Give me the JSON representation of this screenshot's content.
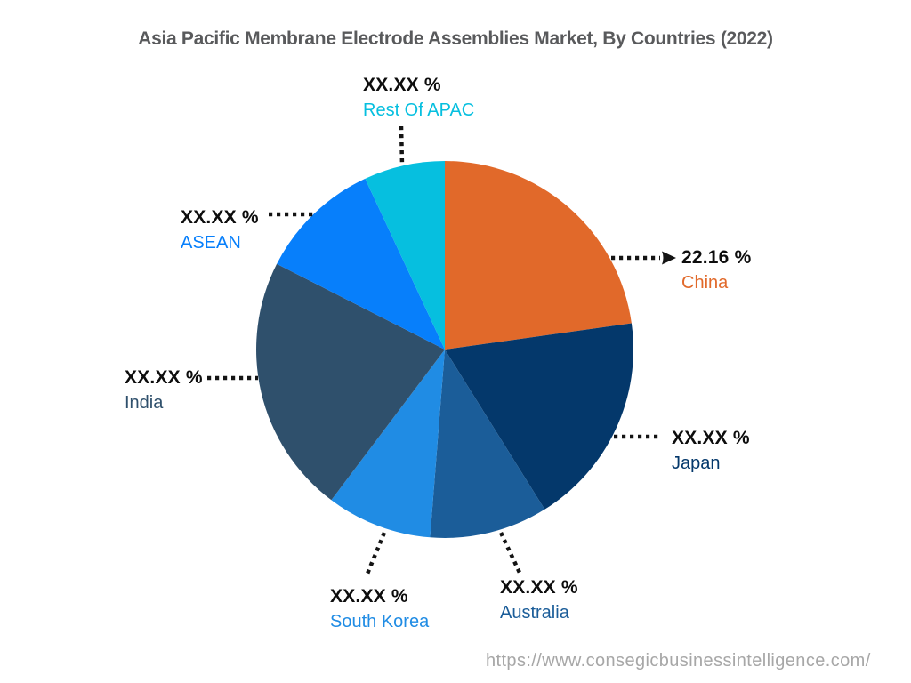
{
  "header": {
    "title": "Asia Pacific Membrane Electrode Assemblies Market, By Countries (2022)",
    "title_color": "#595a5c"
  },
  "footer": {
    "url": "https://www.consegicbusinessintelligence.com/",
    "color": "#a7a7a7"
  },
  "styles": {
    "value_text_color": "#0d0d0d",
    "leader_line_color": "#141414",
    "background": "#ffffff"
  },
  "chart_data": {
    "type": "pie",
    "title": "Asia Pacific Membrane Electrode Assemblies Market, By Countries (2022)",
    "start_angle_deg": 0,
    "direction": "clockwise",
    "legend_position": "callout-labels",
    "segments": [
      {
        "name": "China",
        "value_label": "22.16 %",
        "percent_est": 22.16,
        "sweep_deg": 82.0,
        "color": "#E1692A",
        "has_arrow": true
      },
      {
        "name": "Japan",
        "value_label": "XX.XX %",
        "percent_est": 18.3,
        "sweep_deg": 66.0,
        "color": "#04386B",
        "has_arrow": false
      },
      {
        "name": "Australia",
        "value_label": "XX.XX %",
        "percent_est": 10.1,
        "sweep_deg": 36.5,
        "color": "#1B5D99",
        "has_arrow": false
      },
      {
        "name": "South Korea",
        "value_label": "XX.XX %",
        "percent_est": 9.0,
        "sweep_deg": 32.5,
        "color": "#208CE4",
        "has_arrow": false
      },
      {
        "name": "India",
        "value_label": "XX.XX %",
        "percent_est": 22.2,
        "sweep_deg": 80.0,
        "color": "#2F506C",
        "has_arrow": false
      },
      {
        "name": "ASEAN",
        "value_label": "XX.XX %",
        "percent_est": 10.5,
        "sweep_deg": 38.0,
        "color": "#077FFB",
        "has_arrow": false
      },
      {
        "name": "Rest Of APAC",
        "value_label": "XX.XX %",
        "percent_est": 7.0,
        "sweep_deg": 25.0,
        "color": "#06BFDF",
        "has_arrow": false
      }
    ]
  }
}
